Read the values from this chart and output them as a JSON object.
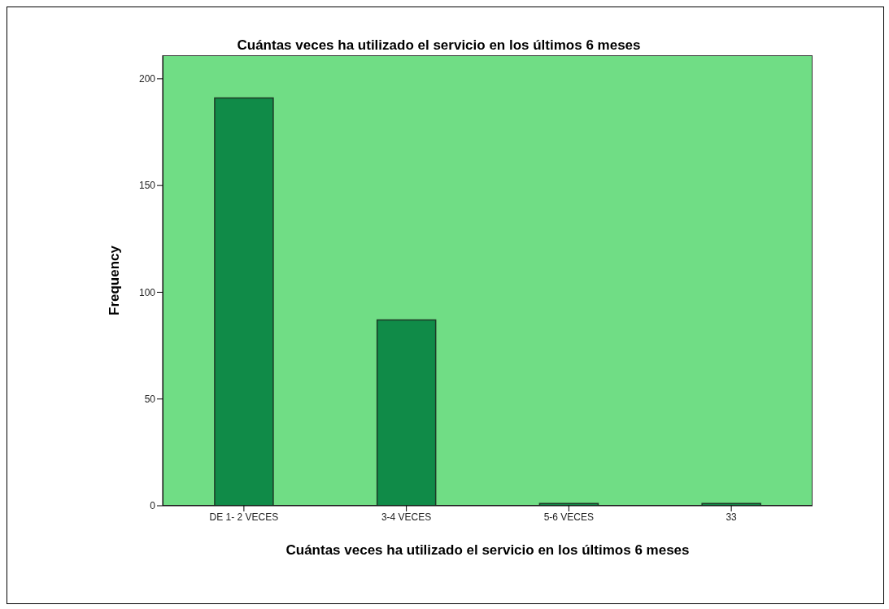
{
  "chart_data": {
    "type": "bar",
    "title": "Cuántas veces ha utilizado el servicio en los últimos 6 meses",
    "xlabel": "Cuántas veces ha utilizado el servicio en los últimos 6 meses",
    "ylabel": "Frequency",
    "categories": [
      "DE 1- 2 VECES",
      "3-4 VECES",
      "5-6 VECES",
      "33"
    ],
    "values": [
      191,
      87,
      1,
      1
    ],
    "color": "#108b48",
    "ylim": [
      0,
      211
    ],
    "yticks": [
      0,
      50,
      100,
      150,
      200
    ],
    "grid": false
  }
}
